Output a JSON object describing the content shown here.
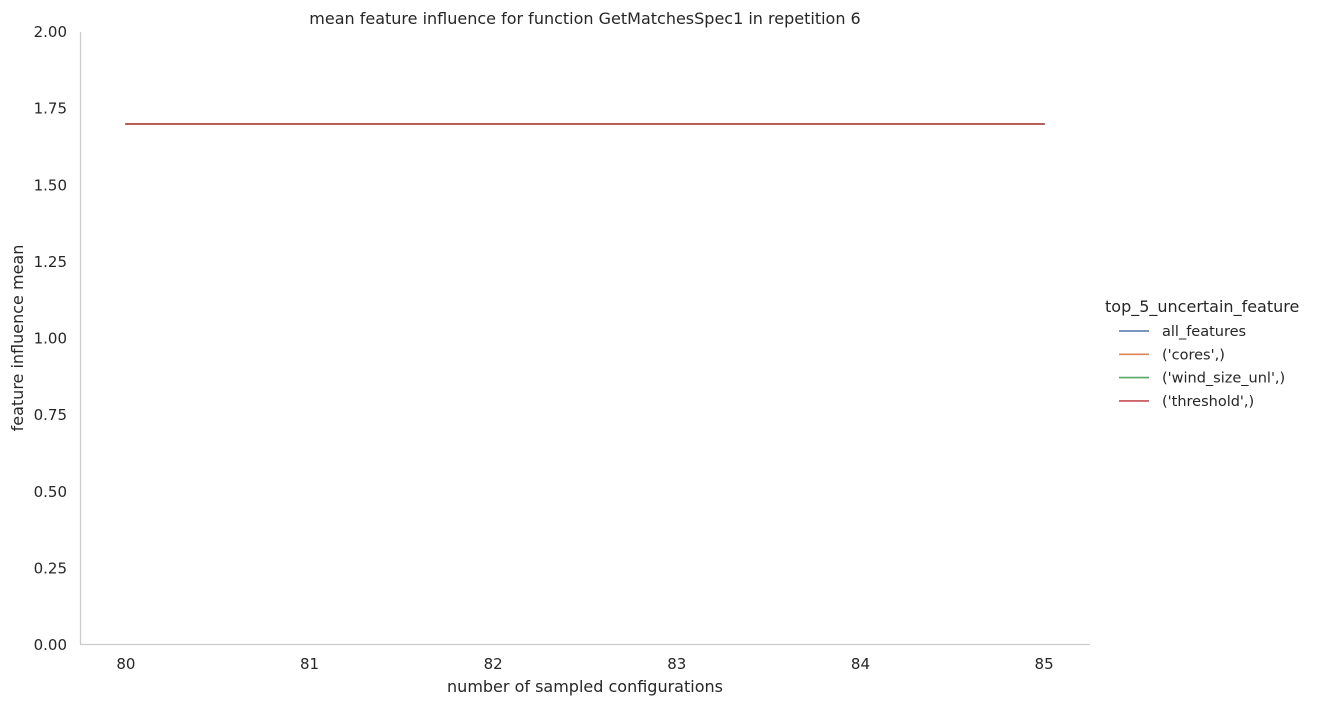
{
  "chart_data": {
    "type": "line",
    "title": "mean feature influence for function GetMatchesSpec1 in repetition 6",
    "xlabel": "number of sampled configurations",
    "ylabel": "feature influence mean",
    "xlim": [
      79.75,
      85.25
    ],
    "ylim": [
      0,
      2
    ],
    "x_ticks": [
      80,
      81,
      82,
      83,
      84,
      85
    ],
    "y_ticks": [
      "0.00",
      "0.25",
      "0.50",
      "0.75",
      "1.00",
      "1.25",
      "1.50",
      "1.75",
      "2.00"
    ],
    "grid": false,
    "legend": {
      "title": "top_5_uncertain_feature",
      "placement": "right"
    },
    "x": [
      80,
      81,
      82,
      83,
      84,
      85
    ],
    "series": [
      {
        "name": "all_features",
        "color": "#4c72b0",
        "values": [
          1.7,
          1.7,
          1.7,
          1.7,
          1.7,
          1.7
        ]
      },
      {
        "name": "('cores',)",
        "color": "#dd8452",
        "values": [
          1.7,
          1.7,
          1.7,
          1.7,
          1.7,
          1.7
        ]
      },
      {
        "name": "('wind_size_unl',)",
        "color": "#55a868",
        "values": [
          1.7,
          1.7,
          1.7,
          1.7,
          1.7,
          1.7
        ]
      },
      {
        "name": "('threshold',)",
        "color": "#c44e52",
        "values": [
          1.7,
          1.7,
          1.7,
          1.7,
          1.7,
          1.7
        ]
      }
    ]
  }
}
